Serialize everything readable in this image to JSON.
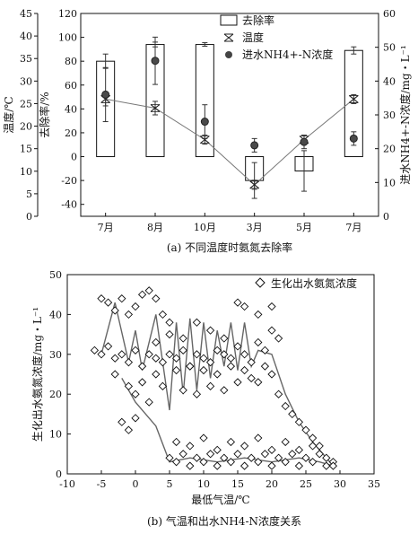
{
  "chart_data": [
    {
      "type": "bar",
      "categories": [
        "7月",
        "8月",
        "10月",
        "3月",
        "5月",
        "7月"
      ],
      "caption": "(a) 不同温度时氨氮去除率",
      "ylabel_left_outer": "温度/℃",
      "ylabel_left_inner": "去除率/%",
      "ylabel_right": "进水NH4+-N浓度/mg・L⁻¹",
      "temp_axis": {
        "ylim": [
          0,
          45
        ],
        "ticks": [
          "0",
          "5",
          "10",
          "15",
          "20",
          "25",
          "30",
          "35",
          "40",
          "45"
        ]
      },
      "removal_axis": {
        "ylim": [
          -50,
          120
        ],
        "ticks": [
          "-40",
          "-20",
          "0",
          "20",
          "40",
          "60",
          "80",
          "100",
          "120"
        ]
      },
      "right_axis": {
        "ylim": [
          0,
          60
        ],
        "ticks": [
          "0",
          "10",
          "20",
          "30",
          "40",
          "50",
          "60"
        ]
      },
      "series": [
        {
          "name": "去除率",
          "kind": "bar",
          "axis": "removal",
          "values": [
            80,
            94,
            94,
            -20,
            -12,
            89
          ],
          "errors": [
            6,
            2,
            1.5,
            15,
            17,
            3
          ]
        },
        {
          "name": "温度",
          "kind": "line",
          "axis": "temp",
          "values": [
            26,
            24,
            17,
            7,
            17,
            26
          ],
          "errors": [
            1.5,
            1.5,
            1,
            1,
            1,
            1
          ]
        },
        {
          "name": "进水NH4+-N浓度",
          "kind": "scatter",
          "axis": "right",
          "values": [
            36,
            46,
            28,
            21,
            22,
            23
          ],
          "errors": [
            8,
            7,
            5,
            2,
            2,
            2
          ]
        }
      ],
      "legend": {
        "position": "top-right",
        "labels": [
          "去除率",
          "温度",
          "进水NH4+-N浓度"
        ]
      }
    },
    {
      "type": "scatter",
      "caption": "(b) 气温和出水NH4-N浓度关系",
      "xlabel": "最低气温/℃",
      "ylabel": "生化出水氨氮浓度/mg・L⁻¹",
      "xlim": [
        -10,
        35
      ],
      "ylim": [
        0,
        50
      ],
      "xticks": [
        "-10",
        "-5",
        "0",
        "5",
        "10",
        "15",
        "20",
        "25",
        "30",
        "35"
      ],
      "yticks": [
        "0",
        "10",
        "20",
        "30",
        "40",
        "50"
      ],
      "legend": {
        "position": "top-right",
        "labels": [
          "生化出水氨氮浓度"
        ]
      },
      "points": [
        [
          -5,
          44
        ],
        [
          -4,
          43
        ],
        [
          -3,
          41
        ],
        [
          -2,
          44
        ],
        [
          -1,
          40
        ],
        [
          0,
          42
        ],
        [
          1,
          45
        ],
        [
          2,
          46
        ],
        [
          3,
          44
        ],
        [
          4,
          40
        ],
        [
          5,
          38
        ],
        [
          -6,
          31
        ],
        [
          -5,
          30
        ],
        [
          -4,
          32
        ],
        [
          -3,
          29
        ],
        [
          -2,
          30
        ],
        [
          -1,
          28
        ],
        [
          0,
          31
        ],
        [
          1,
          27
        ],
        [
          2,
          30
        ],
        [
          3,
          29
        ],
        [
          4,
          28
        ],
        [
          5,
          30
        ],
        [
          6,
          29
        ],
        [
          7,
          31
        ],
        [
          8,
          27
        ],
        [
          9,
          30
        ],
        [
          10,
          29
        ],
        [
          11,
          28
        ],
        [
          12,
          31
        ],
        [
          13,
          30
        ],
        [
          14,
          29
        ],
        [
          15,
          32
        ],
        [
          16,
          30
        ],
        [
          17,
          28
        ],
        [
          18,
          33
        ],
        [
          19,
          31
        ],
        [
          20,
          36
        ],
        [
          21,
          34
        ],
        [
          -3,
          25
        ],
        [
          -1,
          22
        ],
        [
          0,
          20
        ],
        [
          1,
          23
        ],
        [
          2,
          18
        ],
        [
          3,
          25
        ],
        [
          4,
          22
        ],
        [
          6,
          26
        ],
        [
          7,
          21
        ],
        [
          8,
          27
        ],
        [
          9,
          20
        ],
        [
          10,
          26
        ],
        [
          11,
          22
        ],
        [
          12,
          25
        ],
        [
          13,
          21
        ],
        [
          14,
          27
        ],
        [
          15,
          23
        ],
        [
          16,
          26
        ],
        [
          17,
          24
        ],
        [
          18,
          23
        ],
        [
          19,
          27
        ],
        [
          20,
          25
        ],
        [
          3,
          33
        ],
        [
          5,
          35
        ],
        [
          7,
          34
        ],
        [
          9,
          38
        ],
        [
          11,
          36
        ],
        [
          13,
          34
        ],
        [
          15,
          43
        ],
        [
          16,
          42
        ],
        [
          18,
          40
        ],
        [
          20,
          42
        ],
        [
          21,
          20
        ],
        [
          22,
          17
        ],
        [
          23,
          15
        ],
        [
          24,
          13
        ],
        [
          25,
          11
        ],
        [
          26,
          9
        ],
        [
          27,
          7
        ],
        [
          -2,
          13
        ],
        [
          -1,
          11
        ],
        [
          0,
          14
        ],
        [
          5,
          4
        ],
        [
          6,
          3
        ],
        [
          7,
          5
        ],
        [
          8,
          2
        ],
        [
          9,
          4
        ],
        [
          10,
          3
        ],
        [
          11,
          5
        ],
        [
          12,
          2
        ],
        [
          13,
          4
        ],
        [
          14,
          3
        ],
        [
          15,
          5
        ],
        [
          16,
          2
        ],
        [
          17,
          4
        ],
        [
          18,
          3
        ],
        [
          19,
          5
        ],
        [
          20,
          2
        ],
        [
          21,
          4
        ],
        [
          22,
          3
        ],
        [
          23,
          5
        ],
        [
          24,
          2
        ],
        [
          25,
          4
        ],
        [
          26,
          3
        ],
        [
          27,
          5
        ],
        [
          28,
          2
        ],
        [
          29,
          3
        ],
        [
          6,
          8
        ],
        [
          8,
          7
        ],
        [
          10,
          9
        ],
        [
          12,
          6
        ],
        [
          14,
          8
        ],
        [
          16,
          7
        ],
        [
          18,
          9
        ],
        [
          20,
          6
        ],
        [
          22,
          8
        ],
        [
          24,
          6
        ],
        [
          26,
          7
        ],
        [
          28,
          4
        ],
        [
          29,
          2
        ]
      ],
      "trend_line": [
        [
          -5,
          30
        ],
        [
          -3,
          43
        ],
        [
          -1,
          28
        ],
        [
          0,
          36
        ],
        [
          1,
          26
        ],
        [
          3,
          40
        ],
        [
          4,
          28
        ],
        [
          5,
          16
        ],
        [
          6,
          38
        ],
        [
          7,
          20
        ],
        [
          8,
          39
        ],
        [
          9,
          21
        ],
        [
          10,
          38
        ],
        [
          11,
          24
        ],
        [
          12,
          36
        ],
        [
          13,
          27
        ],
        [
          14,
          38
        ],
        [
          15,
          26
        ],
        [
          16,
          38
        ],
        [
          17,
          27
        ],
        [
          18,
          31
        ],
        [
          20,
          30
        ],
        [
          22,
          20
        ],
        [
          24,
          13
        ],
        [
          26,
          8
        ],
        [
          28,
          4
        ],
        [
          29,
          2
        ],
        [
          27,
          3
        ],
        [
          24,
          4
        ],
        [
          20,
          3
        ],
        [
          16,
          4
        ],
        [
          12,
          3
        ],
        [
          8,
          4
        ],
        [
          5,
          3
        ],
        [
          3,
          12
        ],
        [
          0,
          18
        ],
        [
          -2,
          24
        ]
      ]
    }
  ]
}
